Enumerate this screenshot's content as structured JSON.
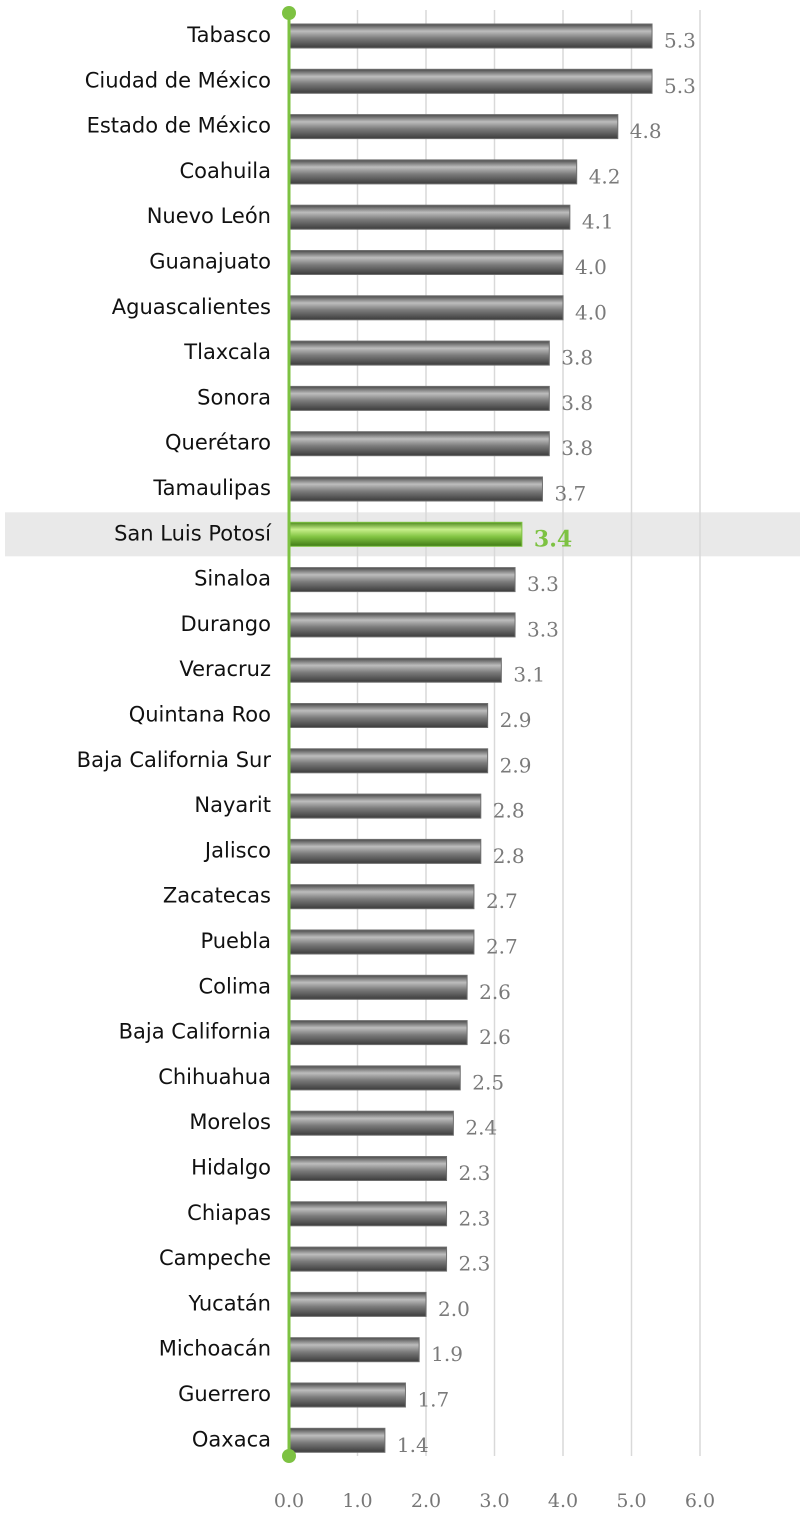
{
  "chart_data": {
    "type": "bar",
    "orientation": "horizontal",
    "categories": [
      "Tabasco",
      "Ciudad de México",
      "Estado de México",
      "Coahuila",
      "Nuevo León",
      "Guanajuato",
      "Aguascalientes",
      "Tlaxcala",
      "Sonora",
      "Querétaro",
      "Tamaulipas",
      "San Luis Potosí",
      "Sinaloa",
      "Durango",
      "Veracruz",
      "Quintana Roo",
      "Baja California Sur",
      "Nayarit",
      "Jalisco",
      "Zacatecas",
      "Puebla",
      "Colima",
      "Baja California",
      "Chihuahua",
      "Morelos",
      "Hidalgo",
      "Chiapas",
      "Campeche",
      "Yucatán",
      "Michoacán",
      "Guerrero",
      "Oaxaca"
    ],
    "values": [
      5.3,
      5.3,
      4.8,
      4.2,
      4.1,
      4.0,
      4.0,
      3.8,
      3.8,
      3.8,
      3.7,
      3.4,
      3.3,
      3.3,
      3.1,
      2.9,
      2.9,
      2.8,
      2.8,
      2.7,
      2.7,
      2.6,
      2.6,
      2.5,
      2.4,
      2.3,
      2.3,
      2.3,
      2.0,
      1.9,
      1.7,
      1.4
    ],
    "value_labels": [
      "5.3",
      "5.3",
      "4.8",
      "4.2",
      "4.1",
      "4.0",
      "4.0",
      "3.8",
      "3.8",
      "3.8",
      "3.7",
      "3.4",
      "3.3",
      "3.3",
      "3.1",
      "2.9",
      "2.9",
      "2.8",
      "2.8",
      "2.7",
      "2.7",
      "2.6",
      "2.6",
      "2.5",
      "2.4",
      "2.3",
      "2.3",
      "2.3",
      "2.0",
      "1.9",
      "1.7",
      "1.4"
    ],
    "color": "#6e6e6e",
    "colors": [
      "#6e6e6e",
      "#6e6e6e",
      "#6e6e6e",
      "#6e6e6e",
      "#6e6e6e",
      "#6e6e6e",
      "#6e6e6e",
      "#6e6e6e",
      "#6e6e6e",
      "#6e6e6e",
      "#6e6e6e",
      "#7dc242",
      "#6e6e6e",
      "#6e6e6e",
      "#6e6e6e",
      "#6e6e6e",
      "#6e6e6e",
      "#6e6e6e",
      "#6e6e6e",
      "#6e6e6e",
      "#6e6e6e",
      "#6e6e6e",
      "#6e6e6e",
      "#6e6e6e",
      "#6e6e6e",
      "#6e6e6e",
      "#6e6e6e",
      "#6e6e6e",
      "#6e6e6e",
      "#6e6e6e",
      "#6e6e6e",
      "#6e6e6e"
    ],
    "xlim": [
      0,
      6
    ],
    "xticks": [
      {
        "value": 0,
        "label": "0.0"
      },
      {
        "value": 1,
        "label": "1.0"
      },
      {
        "value": 2,
        "label": "2.0"
      },
      {
        "value": 3,
        "label": "3.0"
      },
      {
        "value": 4,
        "label": "4.0"
      },
      {
        "value": 5,
        "label": "5.0"
      },
      {
        "value": 6,
        "label": "6.0"
      }
    ],
    "grid": true
  }
}
